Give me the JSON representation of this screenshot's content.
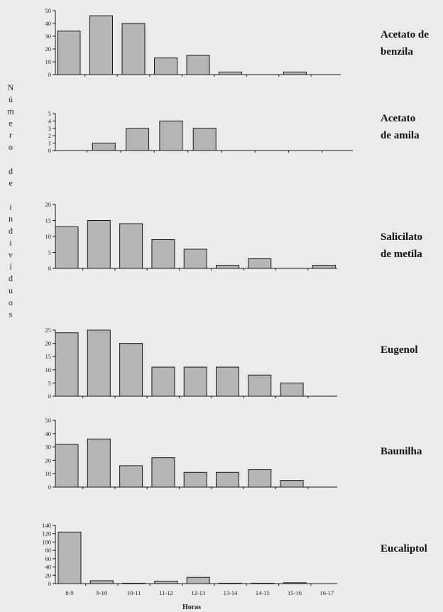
{
  "ylabel": "Número de indivíduos",
  "xlabel": "Horas",
  "chart_data": [
    {
      "type": "bar",
      "title": "Acetato de benzila",
      "title_lines": [
        "Acetato de",
        "benzila"
      ],
      "categories": [
        "8-9",
        "9-10",
        "10-11",
        "11-12",
        "12-13",
        "13-14",
        "14-15",
        "15-16",
        "16-17"
      ],
      "values": [
        34,
        46,
        40,
        13,
        15,
        2,
        0,
        2,
        0
      ],
      "ylim": [
        0,
        50
      ],
      "yticks": [
        0,
        10,
        20,
        30,
        40,
        50
      ]
    },
    {
      "type": "bar",
      "title": "Acetato de amila",
      "title_lines": [
        "Acetato",
        "de amila"
      ],
      "categories": [
        "8-9",
        "9-10",
        "10-11",
        "11-12",
        "12-13",
        "13-14",
        "14-15",
        "15-16",
        "16-17"
      ],
      "values": [
        0,
        1,
        3,
        4,
        3,
        0,
        0,
        0,
        0
      ],
      "ylim": [
        0,
        5
      ],
      "yticks": [
        0,
        1,
        2,
        3,
        4,
        5
      ]
    },
    {
      "type": "bar",
      "title": "Salicilato de metila",
      "title_lines": [
        "Salicilato",
        "de metila"
      ],
      "categories": [
        "8-9",
        "9-10",
        "10-11",
        "11-12",
        "12-13",
        "13-14",
        "14-15",
        "15-16",
        "16-17"
      ],
      "values": [
        13,
        15,
        14,
        9,
        6,
        1,
        3,
        0,
        1
      ],
      "ylim": [
        0,
        20
      ],
      "yticks": [
        0,
        5,
        10,
        15,
        20
      ]
    },
    {
      "type": "bar",
      "title": "Eugenol",
      "title_lines": [
        "Eugenol"
      ],
      "categories": [
        "8-9",
        "9-10",
        "10-11",
        "11-12",
        "12-13",
        "13-14",
        "14-15",
        "15-16",
        "16-17"
      ],
      "values": [
        24,
        25,
        20,
        11,
        11,
        11,
        8,
        5,
        0
      ],
      "ylim": [
        0,
        25
      ],
      "yticks": [
        0,
        5,
        10,
        15,
        20,
        25
      ]
    },
    {
      "type": "bar",
      "title": "Baunilha",
      "title_lines": [
        "Baunilha"
      ],
      "categories": [
        "8-9",
        "9-10",
        "10-11",
        "11-12",
        "12-13",
        "13-14",
        "14-15",
        "15-16",
        "16-17"
      ],
      "values": [
        32,
        36,
        16,
        22,
        11,
        11,
        13,
        5,
        0
      ],
      "ylim": [
        0,
        50
      ],
      "yticks": [
        0,
        10,
        20,
        30,
        40,
        50
      ]
    },
    {
      "type": "bar",
      "title": "Eucaliptol",
      "title_lines": [
        "Eucaliptol"
      ],
      "categories": [
        "8-9",
        "9-10",
        "10-11",
        "11-12",
        "12-13",
        "13-14",
        "14-15",
        "15-16",
        "16-17"
      ],
      "values": [
        124,
        7,
        1,
        6,
        15,
        1,
        1,
        2,
        0
      ],
      "ylim": [
        0,
        140
      ],
      "yticks": [
        0,
        20,
        40,
        60,
        80,
        100,
        120,
        140
      ],
      "show_xticks": true
    }
  ]
}
